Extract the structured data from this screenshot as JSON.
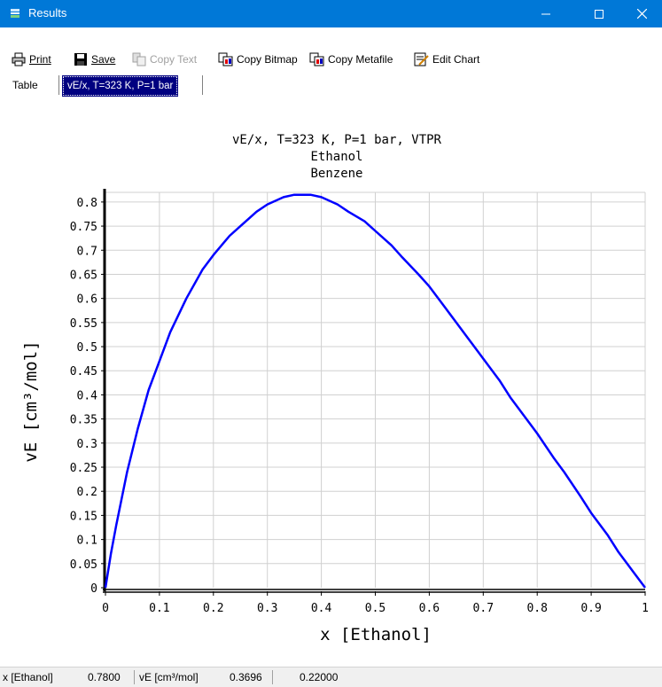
{
  "window": {
    "title": "Results"
  },
  "toolbar": {
    "print_label": "Print",
    "save_label": "Save",
    "copy_text_label": "Copy Text",
    "copy_bitmap_label": "Copy Bitmap",
    "copy_metafile_label": "Copy Metafile",
    "edit_chart_label": "Edit Chart"
  },
  "tabs": [
    {
      "label": "Table",
      "active": false
    },
    {
      "label": "vE/x, T=323 K, P=1 bar",
      "active": true
    }
  ],
  "chart_data": {
    "type": "line",
    "title_lines": [
      "vE/x, T=323 K, P=1 bar, VTPR",
      "Ethanol",
      "Benzene"
    ],
    "xlabel": "x [Ethanol]",
    "ylabel": "vE [cm³/mol]",
    "xlim": [
      0,
      1
    ],
    "ylim": [
      0,
      0.82
    ],
    "xticks": [
      "0",
      "0.1",
      "0.2",
      "0.3",
      "0.4",
      "0.5",
      "0.6",
      "0.7",
      "0.8",
      "0.9",
      "1"
    ],
    "yticks": [
      "0",
      "0.05",
      "0.1",
      "0.15",
      "0.2",
      "0.25",
      "0.3",
      "0.35",
      "0.4",
      "0.45",
      "0.5",
      "0.55",
      "0.6",
      "0.65",
      "0.7",
      "0.75",
      "0.8"
    ],
    "grid": true,
    "series": [
      {
        "color": "#0000ff",
        "x": [
          0,
          0.01,
          0.02,
          0.04,
          0.06,
          0.08,
          0.1,
          0.12,
          0.15,
          0.18,
          0.2,
          0.23,
          0.25,
          0.28,
          0.3,
          0.33,
          0.35,
          0.38,
          0.4,
          0.43,
          0.45,
          0.48,
          0.5,
          0.53,
          0.55,
          0.58,
          0.6,
          0.63,
          0.65,
          0.68,
          0.7,
          0.73,
          0.75,
          0.78,
          0.8,
          0.83,
          0.85,
          0.88,
          0.9,
          0.93,
          0.95,
          0.98,
          1.0
        ],
        "y": [
          0,
          0.07,
          0.13,
          0.24,
          0.33,
          0.41,
          0.47,
          0.53,
          0.6,
          0.66,
          0.69,
          0.73,
          0.75,
          0.78,
          0.795,
          0.81,
          0.815,
          0.815,
          0.81,
          0.795,
          0.78,
          0.76,
          0.74,
          0.71,
          0.685,
          0.65,
          0.625,
          0.58,
          0.55,
          0.505,
          0.475,
          0.43,
          0.395,
          0.35,
          0.32,
          0.27,
          0.24,
          0.19,
          0.155,
          0.11,
          0.075,
          0.03,
          0
        ]
      }
    ]
  },
  "statusbar": {
    "x_label": "x [Ethanol]",
    "x_value": "0.7800",
    "y_label": "vE [cm³/mol]",
    "y_value": "0.3696",
    "extra_value": "0.22000"
  }
}
